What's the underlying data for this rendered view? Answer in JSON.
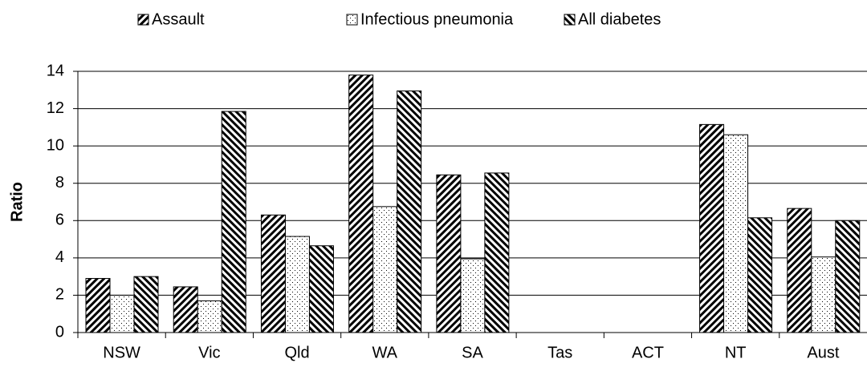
{
  "chart_data": {
    "type": "bar",
    "y_label": "Ratio",
    "categories": [
      "NSW",
      "Vic",
      "Qld",
      "WA",
      "SA",
      "Tas",
      "ACT",
      "NT",
      "Aust"
    ],
    "series": [
      {
        "name": "Assault",
        "color": "#000000",
        "values": [
          2.9,
          2.45,
          6.3,
          13.8,
          8.45,
          null,
          null,
          11.15,
          6.65
        ]
      },
      {
        "name": "Infectious pneumonia",
        "color": "#000000",
        "values": [
          2.0,
          1.7,
          5.15,
          6.75,
          3.95,
          null,
          null,
          10.6,
          4.05
        ]
      },
      {
        "name": "All diabetes",
        "color": "#000000",
        "values": [
          3.0,
          11.85,
          4.65,
          12.95,
          8.55,
          null,
          null,
          6.15,
          6.0
        ]
      }
    ],
    "ylim": [
      0,
      14
    ],
    "yticks": [
      0,
      2,
      4,
      6,
      8,
      10,
      12,
      14
    ],
    "grid": true,
    "legend": "top"
  }
}
